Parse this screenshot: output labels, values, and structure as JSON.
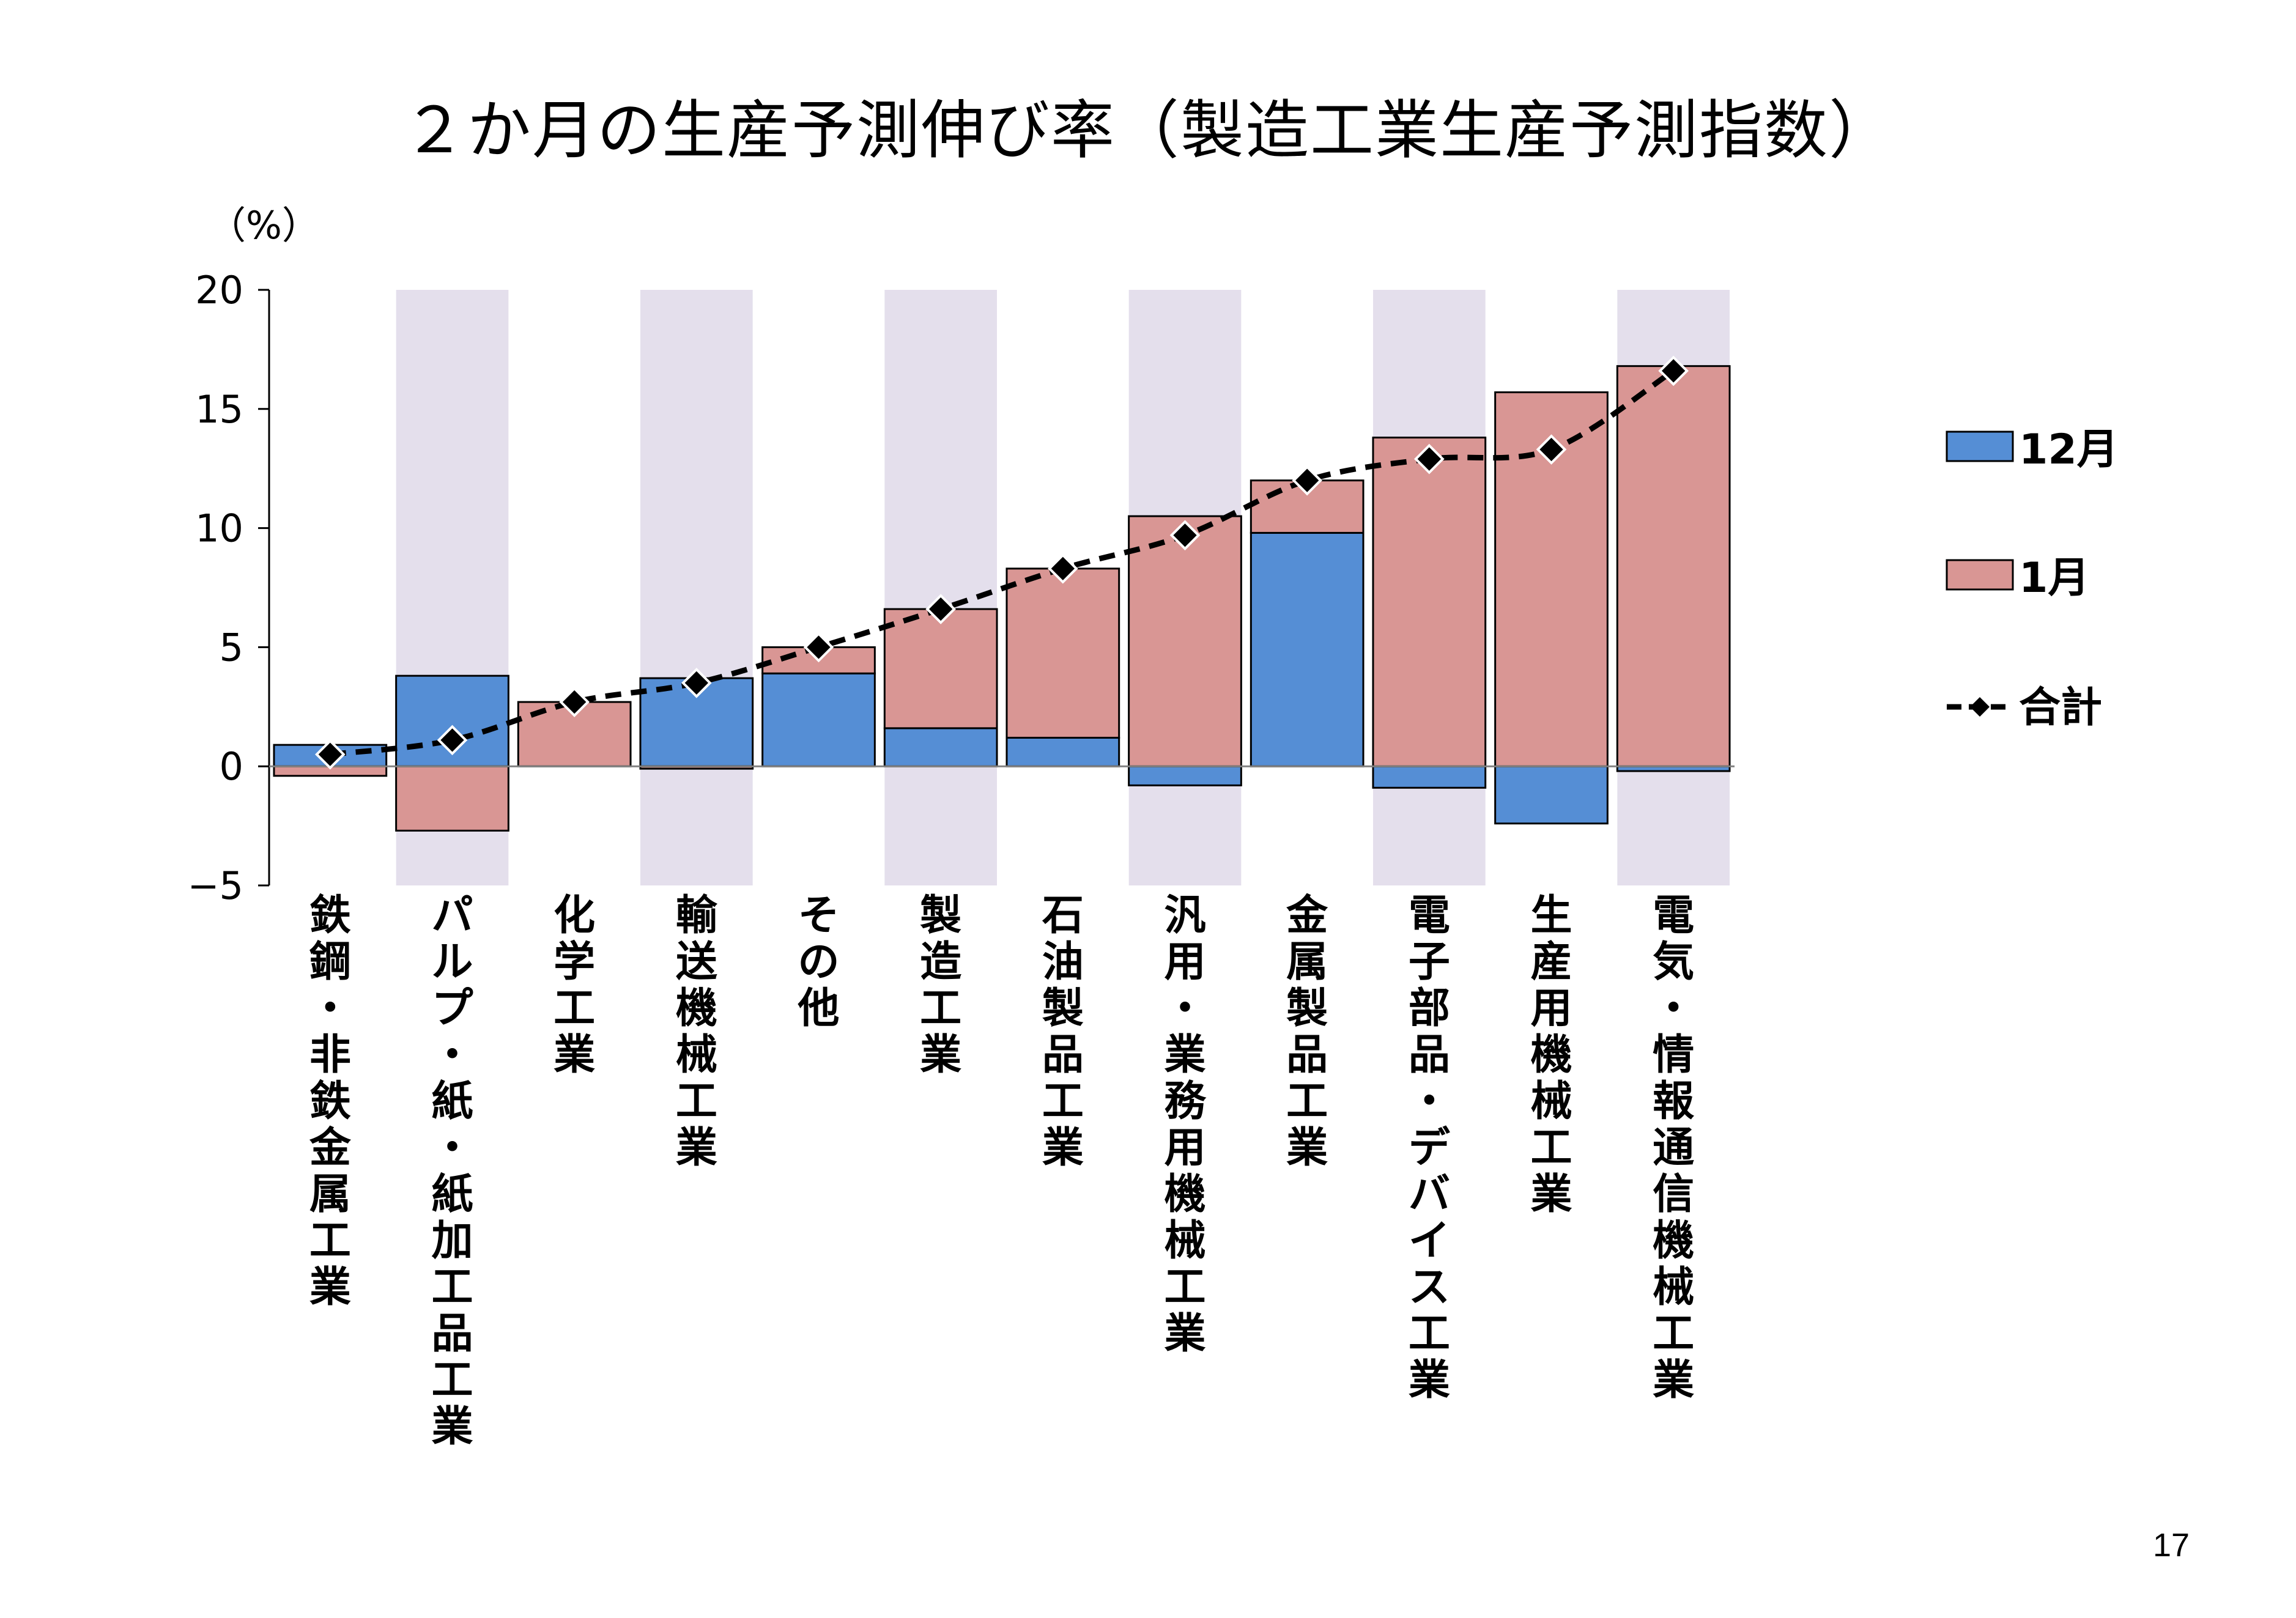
{
  "page": {
    "title": "２か月の生産予測伸び率（製造工業生産予測指数）",
    "unit": "（%）",
    "page_number": "17"
  },
  "colors": {
    "series_dec": "#558ED5",
    "series_jan": "#D99694",
    "band": "#E4DFEC",
    "total_line": "#000000"
  },
  "chart_data": {
    "type": "bar",
    "stacked": true,
    "title": "",
    "xlabel": "",
    "ylabel": "（%）",
    "ylim": [
      -5,
      20
    ],
    "yticks": [
      -5,
      0,
      5,
      10,
      15,
      20
    ],
    "grid": false,
    "legend_position": "right",
    "shaded_bands": "alternate categories",
    "categories": [
      "鉄鋼・非鉄金属工業",
      "パルプ・紙・紙加工品工業",
      "化学工業",
      "輸送機械工業",
      "その他",
      "製造工業",
      "石油製品工業",
      "汎用・業務用機械工業",
      "金属製品工業",
      "電子部品・デバイス工業",
      "生産用機械工業",
      "電気・情報通信機械工業"
    ],
    "series": [
      {
        "name": "12月",
        "type": "bar",
        "values": [
          0.9,
          3.8,
          0.0,
          3.7,
          3.9,
          1.6,
          1.2,
          -0.8,
          9.8,
          -0.9,
          -2.4,
          -0.2
        ]
      },
      {
        "name": "1月",
        "type": "bar",
        "values": [
          -0.4,
          -2.7,
          2.7,
          -0.1,
          1.1,
          5.0,
          7.1,
          10.5,
          2.2,
          13.8,
          15.7,
          16.8
        ]
      },
      {
        "name": "合計",
        "type": "line",
        "values": [
          0.5,
          1.1,
          2.7,
          3.5,
          5.0,
          6.6,
          8.3,
          9.7,
          12.0,
          12.9,
          13.3,
          16.6
        ]
      }
    ]
  }
}
